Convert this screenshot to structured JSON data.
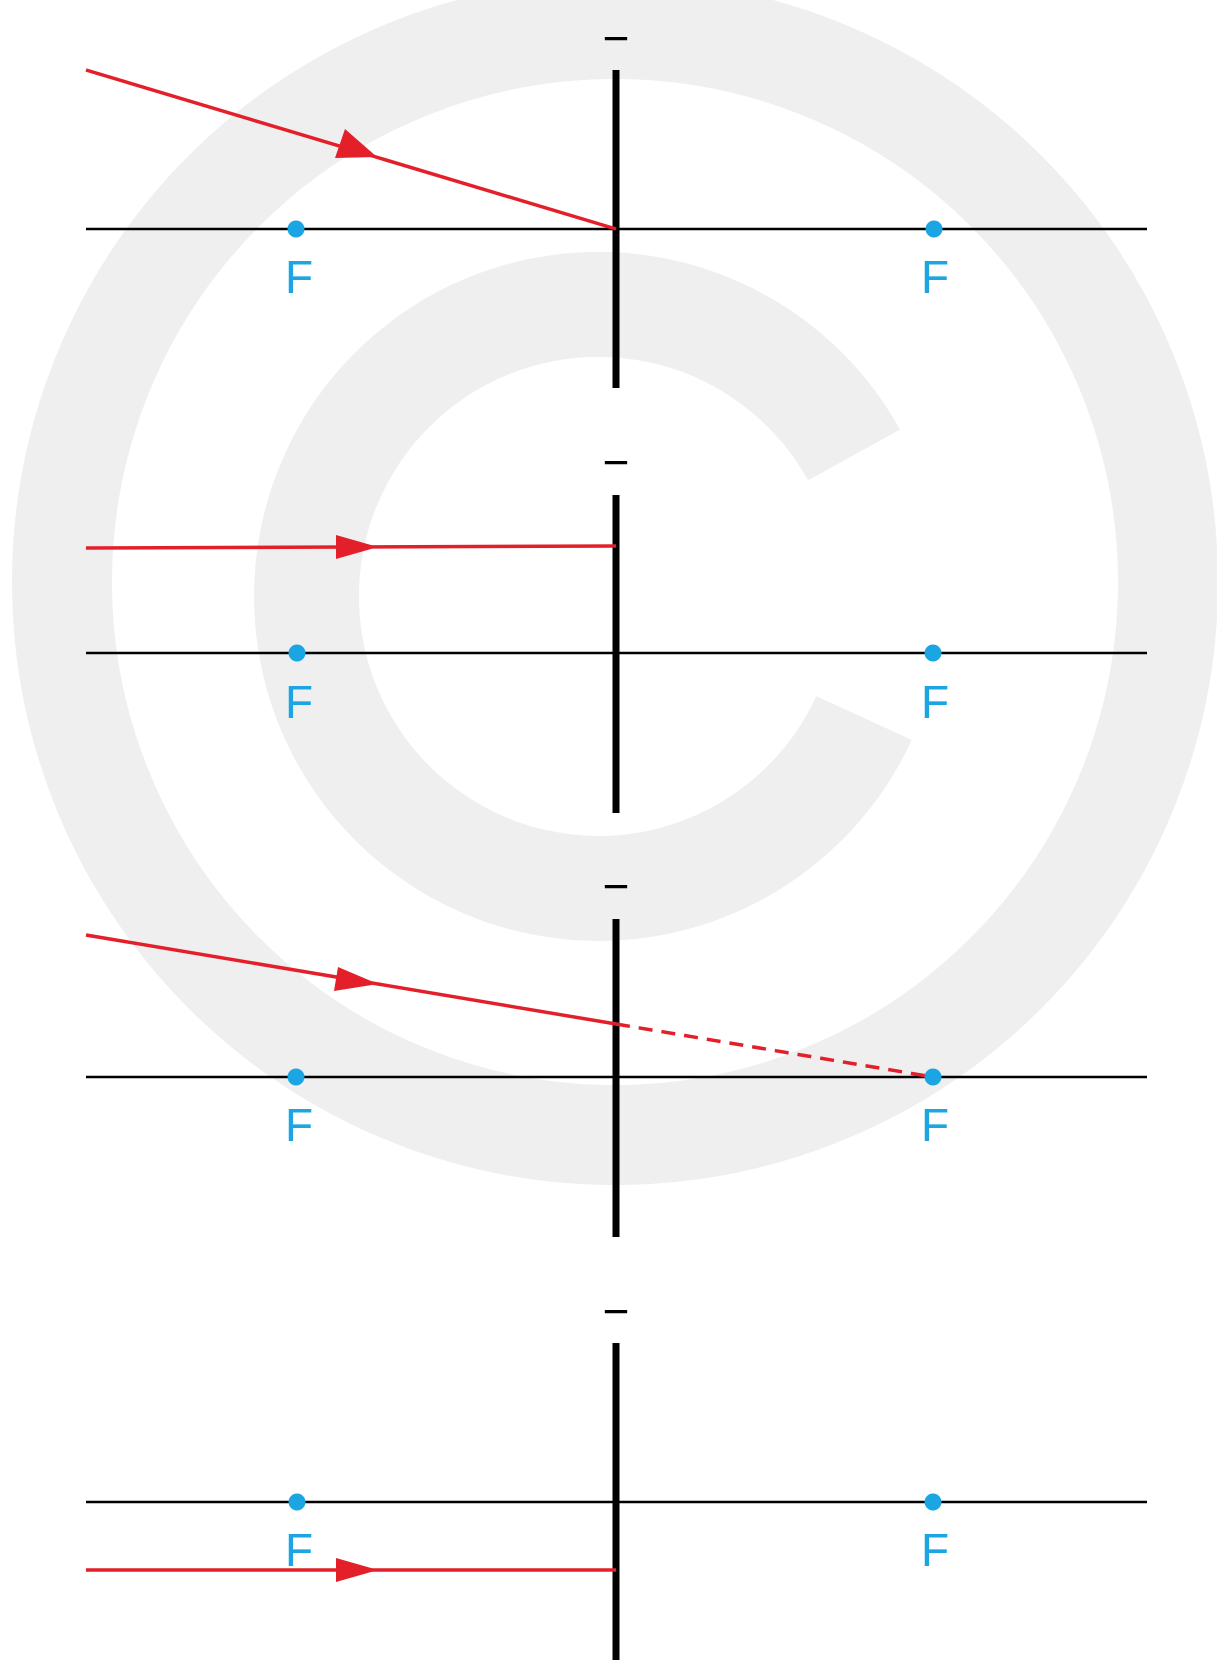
{
  "colors": {
    "background": "#ffffff",
    "watermark": "#efefef",
    "axis": "#000000",
    "lens": "#000000",
    "ray": "#e3202a",
    "focus": "#1ba5e3"
  },
  "watermark_icon": "copyright-icon",
  "focus_label": "F",
  "lens_symbol": "−",
  "panels": [
    {
      "id": "panel-1",
      "ray_type": "oblique-through-center",
      "ray_after_lens": "none"
    },
    {
      "id": "panel-2",
      "ray_type": "parallel-above-axis",
      "ray_after_lens": "none"
    },
    {
      "id": "panel-3",
      "ray_type": "oblique-toward-far-focus",
      "ray_after_lens": "dashed-extension-to-focus"
    },
    {
      "id": "panel-4",
      "ray_type": "parallel-below-axis",
      "ray_after_lens": "none"
    }
  ]
}
